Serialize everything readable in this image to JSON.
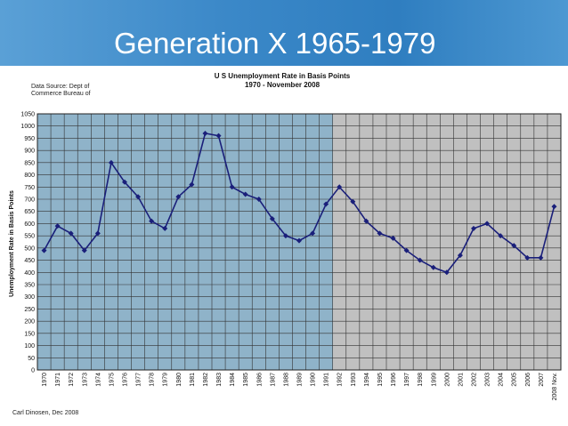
{
  "slide": {
    "title": "Generation X 1965-1979",
    "header_color": "#3b88c8"
  },
  "chart_data": {
    "type": "line",
    "title": "U S Unemployment Rate in Basis Points",
    "subtitle": "1970 - November 2008",
    "source_line1": "Data Source: Dept of",
    "source_line2": "Commerce Bureau of",
    "credit": "Carl Dinosen, Dec 2008",
    "ylabel": "Unemployment Rate in Basis Points",
    "xlabel": "",
    "ylim": [
      0,
      1050
    ],
    "ytick_step": 50,
    "grid": true,
    "categories": [
      "1970",
      "1971",
      "1972",
      "1973",
      "1974",
      "1975",
      "1976",
      "1977",
      "1978",
      "1979",
      "1980",
      "1981",
      "1982",
      "1983",
      "1984",
      "1985",
      "1986",
      "1987",
      "1988",
      "1989",
      "1990",
      "1991",
      "1992",
      "1993",
      "1994",
      "1995",
      "1996",
      "1997",
      "1998",
      "1999",
      "2000",
      "2001",
      "2002",
      "2003",
      "2004",
      "2005",
      "2006",
      "2007",
      "2008 Nov."
    ],
    "series": [
      {
        "values": [
          490,
          590,
          560,
          490,
          560,
          850,
          770,
          710,
          610,
          580,
          710,
          760,
          970,
          960,
          750,
          720,
          700,
          620,
          550,
          530,
          560,
          680,
          750,
          690,
          610,
          560,
          540,
          490,
          450,
          420,
          400,
          470,
          580,
          600,
          550,
          510,
          460,
          460,
          670
        ]
      }
    ],
    "highlight_range": [
      "1970",
      "1991"
    ],
    "colors": {
      "highlight_fill": "#8fb3c9",
      "rest_fill": "#c0c0c0",
      "line": "#1a1f7a",
      "grid": "#333333"
    }
  }
}
